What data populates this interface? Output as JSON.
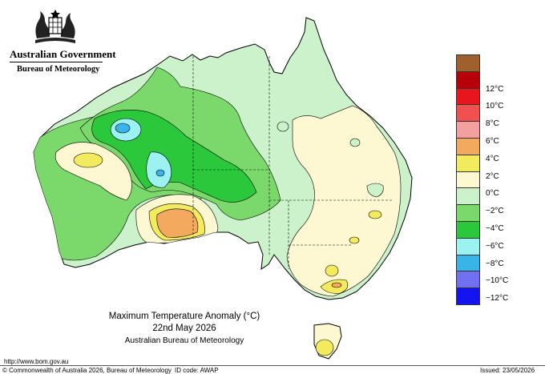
{
  "header": {
    "government": "Australian Government",
    "bureau": "Bureau of Meteorology"
  },
  "map": {
    "title": "Maximum Temperature Anomaly (°C)",
    "date": "22nd May 2026",
    "source": "Australian Bureau of Meteorology"
  },
  "legend": {
    "unit": "°C",
    "items": [
      {
        "label": "",
        "color": "#a0602e"
      },
      {
        "label": "12°C",
        "color": "#b8000a"
      },
      {
        "label": "10°C",
        "color": "#e8141e"
      },
      {
        "label": "8°C",
        "color": "#f05050"
      },
      {
        "label": "6°C",
        "color": "#f3a0a0"
      },
      {
        "label": "4°C",
        "color": "#f3aa5e"
      },
      {
        "label": "2°C",
        "color": "#f3eb5e"
      },
      {
        "label": "0°C",
        "color": "#fdf8d2"
      },
      {
        "label": "−2°C",
        "color": "#ccf2cc"
      },
      {
        "label": "−4°C",
        "color": "#7bd96b"
      },
      {
        "label": "−6°C",
        "color": "#2bc83b"
      },
      {
        "label": "−8°C",
        "color": "#9cf1f1"
      },
      {
        "label": "−10°C",
        "color": "#38b4e8"
      },
      {
        "label": "−12°C",
        "color": "#7070f0"
      },
      {
        "label": "",
        "color": "#1414f0"
      }
    ]
  },
  "footer": {
    "url": "http://www.bom.gov.au",
    "copyright": "© Commonwealth of Australia 2026, Bureau of Meteorology",
    "id_code": "ID code: AWAP",
    "issued": "Issued: 23/05/2026"
  }
}
